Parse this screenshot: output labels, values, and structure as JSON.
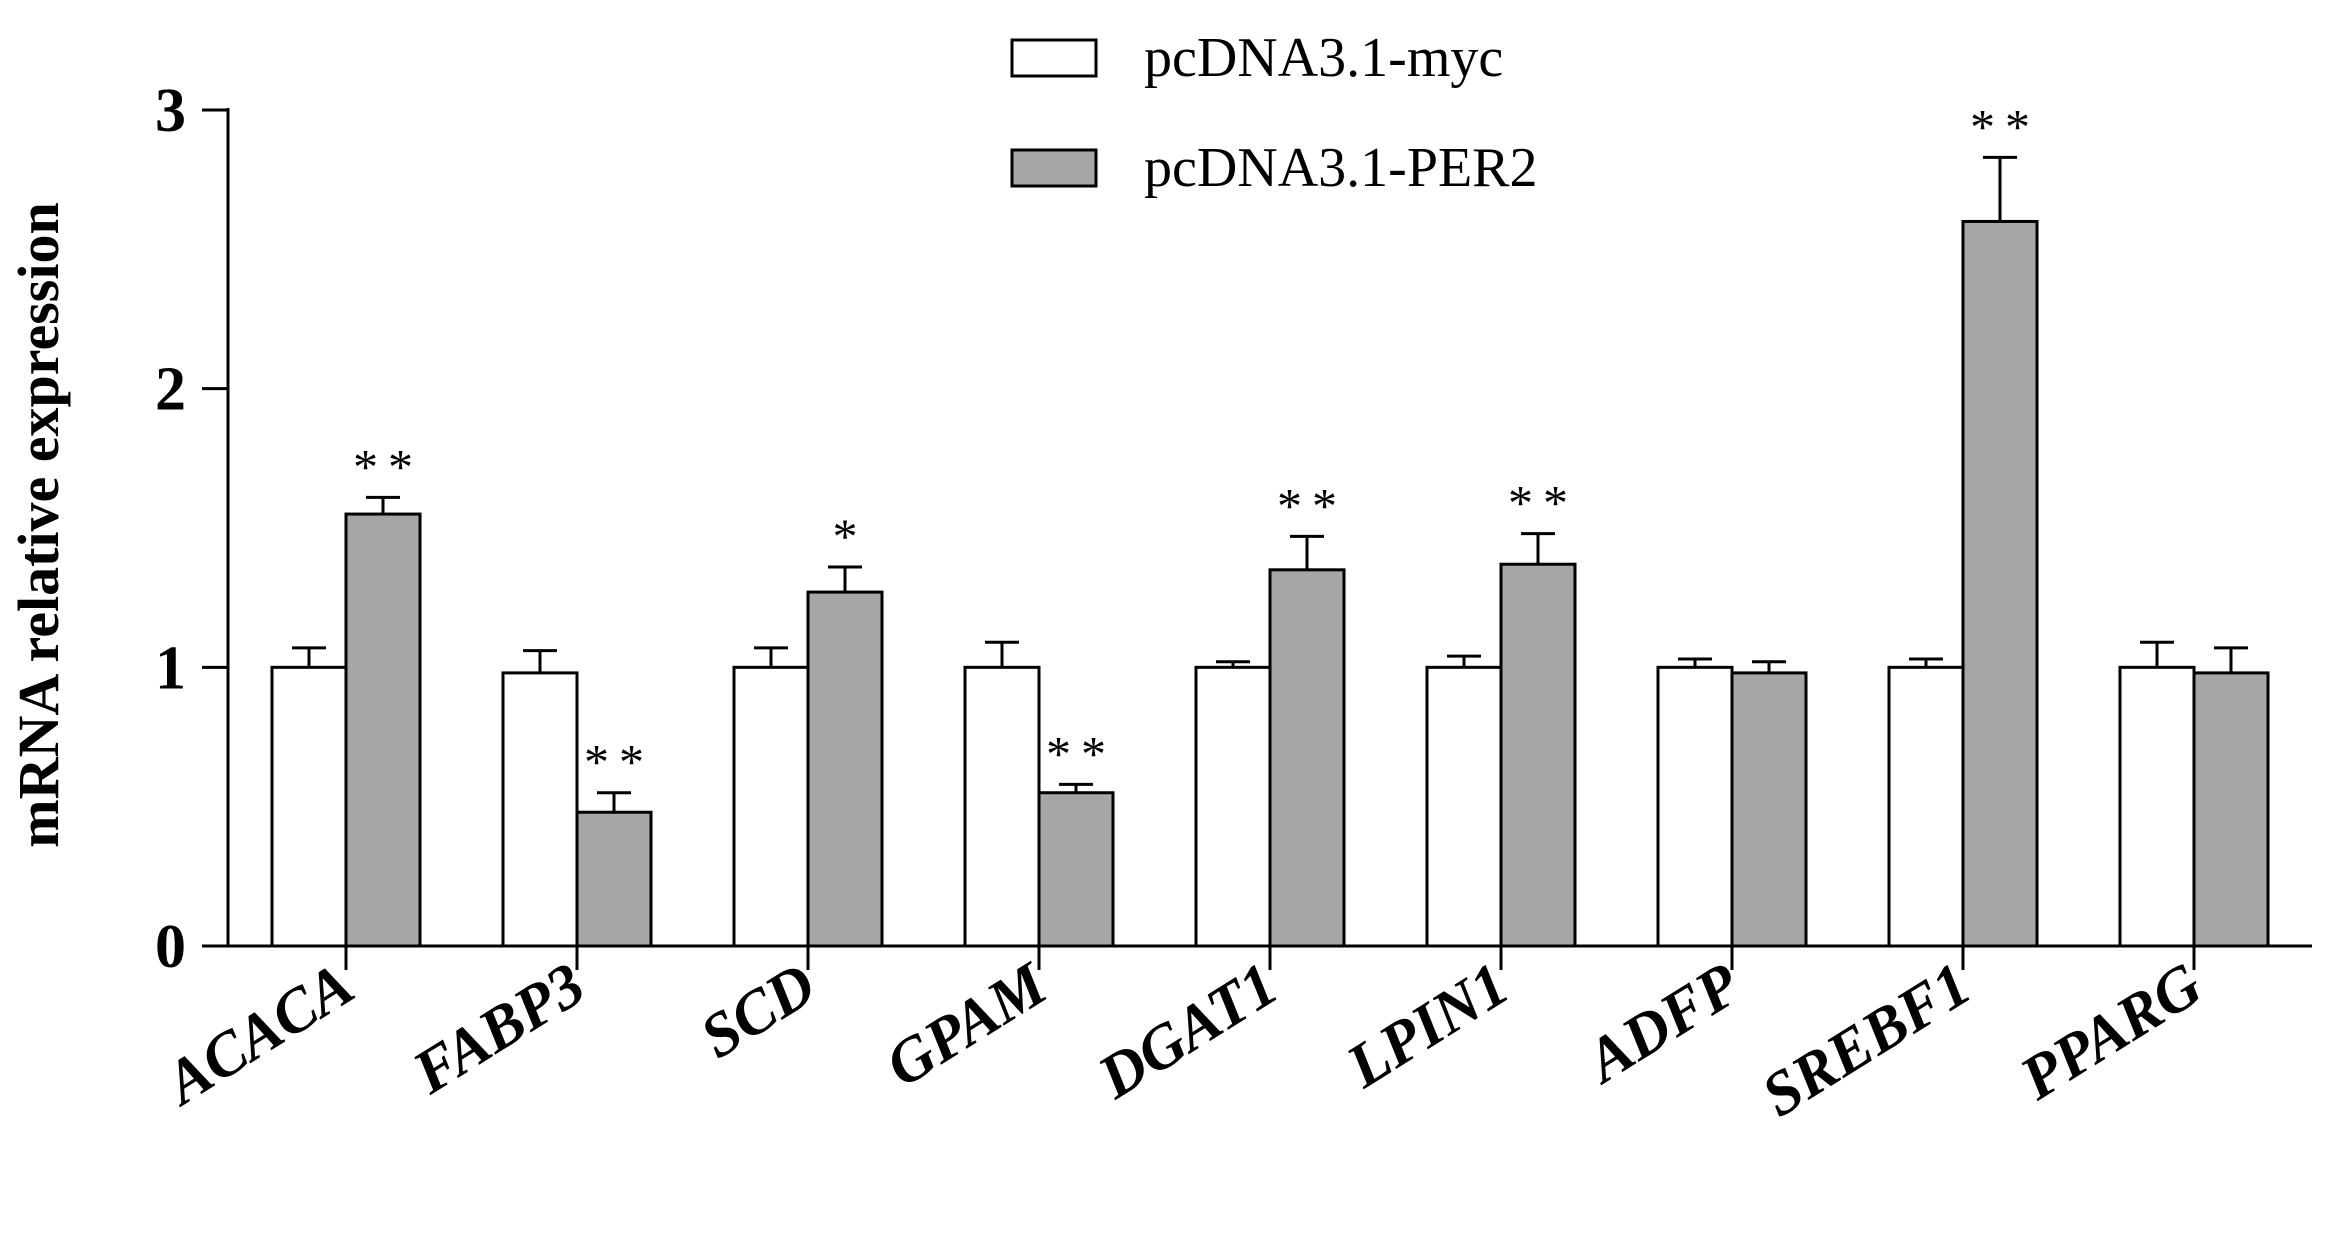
{
  "chart_data": {
    "type": "bar",
    "title": "",
    "xlabel": "",
    "ylabel": "mRNA relative expression",
    "ylim": [
      0,
      3
    ],
    "yticks": [
      0,
      1,
      2,
      3
    ],
    "categories": [
      "ACACA",
      "FABP3",
      "SCD",
      "GPAM",
      "DGAT1",
      "LPIN1",
      "ADFP",
      "SREBF1",
      "PPARG"
    ],
    "series": [
      {
        "name": "pcDNA3.1-myc",
        "color": "#ffffff",
        "values": [
          1.0,
          0.98,
          1.0,
          1.0,
          1.0,
          1.0,
          1.0,
          1.0,
          1.0
        ],
        "errors": [
          0.07,
          0.08,
          0.07,
          0.09,
          0.02,
          0.04,
          0.03,
          0.03,
          0.09
        ]
      },
      {
        "name": "pcDNA3.1-PER2",
        "color": "#a6a6a8",
        "values": [
          1.55,
          0.48,
          1.27,
          0.55,
          1.35,
          1.37,
          0.98,
          2.6,
          0.98
        ],
        "errors": [
          0.06,
          0.07,
          0.09,
          0.03,
          0.12,
          0.11,
          0.04,
          0.23,
          0.09
        ],
        "significance": [
          "**",
          "**",
          "*",
          "**",
          "**",
          "**",
          "",
          "**",
          ""
        ]
      }
    ],
    "legend": "top-center",
    "grid": false
  }
}
